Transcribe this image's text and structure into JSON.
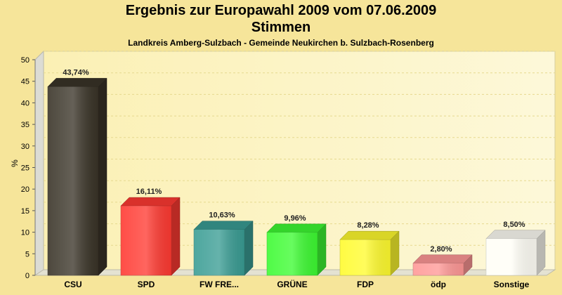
{
  "chart_data": {
    "type": "bar",
    "title": "Ergebnis zur Europawahl 2009 vom 07.06.2009",
    "subtitle": "Stimmen",
    "caption": "Landkreis Amberg-Sulzbach - Gemeinde Neukirchen b. Sulzbach-Rosenberg",
    "xlabel": "",
    "ylabel": "%",
    "ylim": [
      0,
      50
    ],
    "yticks": [
      0,
      5,
      10,
      15,
      20,
      25,
      30,
      35,
      40,
      45,
      50
    ],
    "grid": true,
    "categories": [
      "CSU",
      "SPD",
      "FW FRE...",
      "GRÜNE",
      "FDP",
      "ödp",
      "Sonstige"
    ],
    "values": [
      43.74,
      16.11,
      10.63,
      9.96,
      8.28,
      2.8,
      8.5
    ],
    "value_labels": [
      "43,74%",
      "16,11%",
      "10,63%",
      "9,96%",
      "8,28%",
      "2,80%",
      "8,50%"
    ],
    "colors": [
      "#3a3428",
      "#ff3a32",
      "#3a9d94",
      "#3dfb32",
      "#fffb2e",
      "#ff9896",
      "#fffef6"
    ]
  }
}
